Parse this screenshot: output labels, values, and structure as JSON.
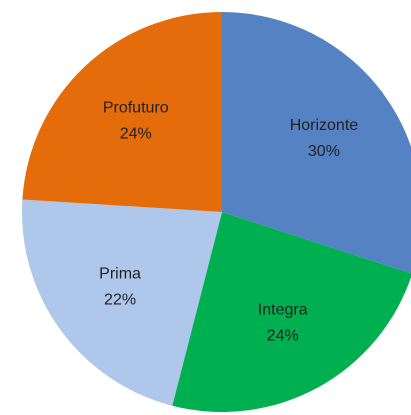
{
  "chart_data": {
    "type": "pie",
    "categories": [
      "Horizonte",
      "Integra",
      "Prima",
      "Profuturo"
    ],
    "values": [
      30,
      24,
      22,
      24
    ],
    "value_labels": [
      "30%",
      "24%",
      "22%",
      "24%"
    ],
    "colors": [
      "#5482c2",
      "#00b050",
      "#aec7ea",
      "#e46c0a"
    ]
  }
}
